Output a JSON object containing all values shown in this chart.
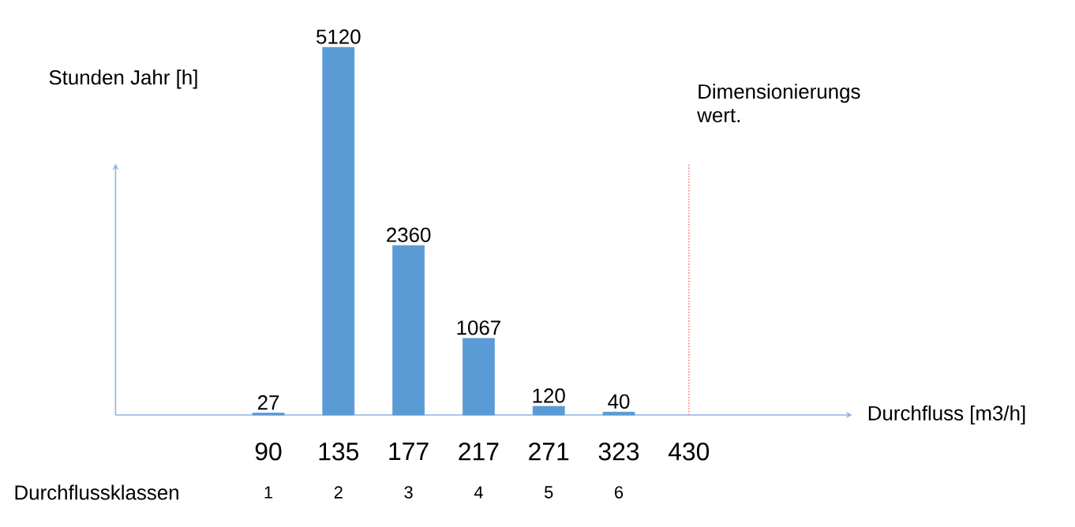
{
  "chart_data": {
    "type": "bar",
    "ylabel": "Stunden Jahr [h]",
    "categories": [
      "90",
      "135",
      "177",
      "217",
      "271",
      "323",
      "430"
    ],
    "values": [
      27,
      5120,
      2360,
      1067,
      120,
      40,
      null
    ],
    "color": "#5b9bd5",
    "data_labels": true,
    "ref_lines": [
      {
        "axis": "x",
        "value": "430",
        "label": "Dimensionierungs wert.",
        "color": "#ff7c80",
        "line_style": "dotted"
      }
    ],
    "annotations": [
      "Durchfluss  [m3/h]",
      "Durchflussklassen",
      "1",
      "2",
      "3",
      "4",
      "5",
      "6"
    ]
  }
}
